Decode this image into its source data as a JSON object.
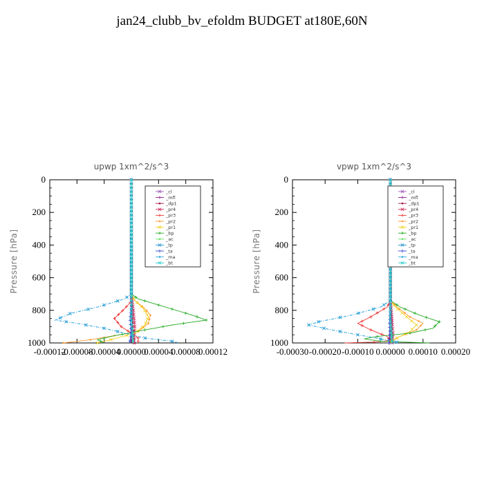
{
  "title": "jan24_clubb_bv_efoldm  BUDGET at180E,60N",
  "legend": [
    {
      "name": "_cl",
      "color": "#9b59b6"
    },
    {
      "name": "_mfl",
      "color": "#8e1a8e"
    },
    {
      "name": "_dp1",
      "color": "#a0124a"
    },
    {
      "name": "_pr4",
      "color": "#cc2255"
    },
    {
      "name": "_pr3",
      "color": "#ee3333"
    },
    {
      "name": "_pr2",
      "color": "#ff9933"
    },
    {
      "name": "_pr1",
      "color": "#f0d020"
    },
    {
      "name": "_bp",
      "color": "#22aa22"
    },
    {
      "name": "_ac",
      "color": "#66dd66"
    },
    {
      "name": "_tp",
      "color": "#1f8fcf"
    },
    {
      "name": "_ta",
      "color": "#3344cc"
    },
    {
      "name": "_ma",
      "color": "#33aadd"
    },
    {
      "name": "_bt",
      "color": "#22cccc"
    }
  ],
  "chart_data": [
    {
      "type": "line",
      "title": "upwp   1xm^2/s^3",
      "ylabel": "Pressure [hPa]",
      "xlim": [
        -0.00012,
        0.00012
      ],
      "ylim": [
        1000,
        0
      ],
      "y_inverted": true,
      "xticks": [
        "-0.00012",
        "-0.00008",
        "-0.00004",
        "0.00000",
        "0.00004",
        "0.00008",
        "0.00012"
      ],
      "xtick_values": [
        -0.00012,
        -8e-05,
        -4e-05,
        0,
        4e-05,
        8e-05,
        0.00012
      ],
      "yticks": [
        "0",
        "200",
        "400",
        "600",
        "800",
        "1000"
      ],
      "ytick_values": [
        0,
        200,
        400,
        600,
        800,
        1000
      ],
      "series": [
        {
          "name": "_cl",
          "points": [
            [
              0,
              0
            ],
            [
              0,
              700
            ],
            [
              1e-06,
              850
            ],
            [
              0,
              950
            ],
            [
              2e-06,
              1000
            ]
          ]
        },
        {
          "name": "_mfl",
          "points": [
            [
              0,
              0
            ],
            [
              0,
              700
            ],
            [
              1e-06,
              850
            ],
            [
              0,
              950
            ],
            [
              -1e-06,
              1000
            ]
          ]
        },
        {
          "name": "_dp1",
          "points": [
            [
              0,
              0
            ],
            [
              0,
              700
            ],
            [
              0,
              800
            ],
            [
              2e-06,
              900
            ],
            [
              5e-06,
              1000
            ]
          ]
        },
        {
          "name": "_pr4",
          "points": [
            [
              0,
              0
            ],
            [
              0,
              700
            ],
            [
              3e-06,
              800
            ],
            [
              5e-06,
              900
            ],
            [
              4e-06,
              1000
            ]
          ]
        },
        {
          "name": "_pr3",
          "points": [
            [
              0,
              0
            ],
            [
              0,
              700
            ],
            [
              1e-06,
              740
            ],
            [
              -1e-05,
              790
            ],
            [
              -2.5e-05,
              850
            ],
            [
              -1.5e-05,
              900
            ],
            [
              0,
              940
            ],
            [
              1e-05,
              970
            ],
            [
              1e-05,
              1000
            ]
          ]
        },
        {
          "name": "_pr2",
          "points": [
            [
              0,
              0
            ],
            [
              0,
              700
            ],
            [
              5e-06,
              740
            ],
            [
              2e-05,
              790
            ],
            [
              2.8e-05,
              830
            ],
            [
              2.5e-05,
              880
            ],
            [
              1e-05,
              930
            ],
            [
              -6e-05,
              980
            ],
            [
              -0.0001,
              1000
            ]
          ]
        },
        {
          "name": "_pr1",
          "points": [
            [
              0,
              0
            ],
            [
              0,
              700
            ],
            [
              5e-06,
              740
            ],
            [
              1.8e-05,
              790
            ],
            [
              2.5e-05,
              840
            ],
            [
              2e-05,
              890
            ],
            [
              5e-06,
              940
            ],
            [
              -3e-05,
              980
            ],
            [
              -5e-05,
              1000
            ]
          ]
        },
        {
          "name": "_bp",
          "points": [
            [
              0,
              0
            ],
            [
              0,
              700
            ],
            [
              1e-05,
              730
            ],
            [
              5e-05,
              780
            ],
            [
              9e-05,
              830
            ],
            [
              0.00011,
              860
            ],
            [
              6e-05,
              890
            ],
            [
              2e-05,
              920
            ],
            [
              -3e-05,
              960
            ],
            [
              -5e-05,
              980
            ],
            [
              -4e-05,
              1000
            ]
          ]
        },
        {
          "name": "_ac",
          "points": [
            [
              0,
              0
            ],
            [
              0,
              850
            ],
            [
              2e-06,
              950
            ],
            [
              2e-06,
              1000
            ]
          ]
        },
        {
          "name": "_tp",
          "points": [
            [
              0,
              0
            ],
            [
              0,
              700
            ],
            [
              -1e-05,
              730
            ],
            [
              -5e-05,
              780
            ],
            [
              -9e-05,
              820
            ],
            [
              -0.000112,
              860
            ],
            [
              -8e-05,
              880
            ],
            [
              -4e-05,
              910
            ],
            [
              -1e-05,
              940
            ],
            [
              2e-05,
              970
            ],
            [
              6e-05,
              990
            ],
            [
              7e-05,
              1000
            ]
          ]
        },
        {
          "name": "_ta",
          "points": [
            [
              0,
              0
            ],
            [
              0,
              780
            ],
            [
              -2e-06,
              850
            ],
            [
              -1e-06,
              900
            ],
            [
              0,
              950
            ],
            [
              -3e-06,
              1000
            ]
          ]
        },
        {
          "name": "_ma",
          "points": [
            [
              0,
              0
            ],
            [
              0,
              700
            ],
            [
              -1e-05,
              730
            ],
            [
              -5e-05,
              780
            ],
            [
              -9e-05,
              820
            ],
            [
              -0.000112,
              860
            ],
            [
              -8e-05,
              880
            ],
            [
              -4e-05,
              910
            ],
            [
              -1e-05,
              940
            ],
            [
              2e-05,
              970
            ],
            [
              6e-05,
              990
            ],
            [
              7e-05,
              1000
            ]
          ]
        },
        {
          "name": "_bt",
          "points": [
            [
              0,
              0
            ],
            [
              0,
              850
            ],
            [
              2e-06,
              950
            ],
            [
              3e-06,
              1000
            ]
          ]
        }
      ]
    },
    {
      "type": "line",
      "title": "vpwp   1xm^2/s^3",
      "ylabel": "Pressure [hPa]",
      "xlim": [
        -0.0003,
        0.0002
      ],
      "ylim": [
        1000,
        0
      ],
      "y_inverted": true,
      "xticks": [
        "-0.00030",
        "-0.00020",
        "-0.00010",
        "0.00000",
        "0.00010",
        "0.00020"
      ],
      "xtick_values": [
        -0.0003,
        -0.0002,
        -0.0001,
        0,
        0.0001,
        0.0002
      ],
      "yticks": [
        "0",
        "200",
        "400",
        "600",
        "800",
        "1000"
      ],
      "ytick_values": [
        0,
        200,
        400,
        600,
        800,
        1000
      ],
      "series": [
        {
          "name": "_cl",
          "points": [
            [
              0,
              0
            ],
            [
              0,
              750
            ],
            [
              3e-06,
              880
            ],
            [
              0,
              950
            ],
            [
              5e-06,
              1000
            ]
          ]
        },
        {
          "name": "_mfl",
          "points": [
            [
              0,
              0
            ],
            [
              0,
              750
            ],
            [
              3e-06,
              880
            ],
            [
              0,
              950
            ],
            [
              -3e-06,
              1000
            ]
          ]
        },
        {
          "name": "_dp1",
          "points": [
            [
              0,
              0
            ],
            [
              0,
              750
            ],
            [
              0,
              850
            ],
            [
              5e-06,
              950
            ],
            [
              1e-05,
              1000
            ]
          ]
        },
        {
          "name": "_pr4",
          "points": [
            [
              0,
              0
            ],
            [
              0,
              750
            ],
            [
              5e-06,
              850
            ],
            [
              8e-06,
              950
            ],
            [
              5e-06,
              1000
            ]
          ]
        },
        {
          "name": "_pr3",
          "points": [
            [
              0,
              0
            ],
            [
              0,
              740
            ],
            [
              -1e-05,
              780
            ],
            [
              -6e-05,
              840
            ],
            [
              -0.0001,
              880
            ],
            [
              -6e-05,
              920
            ],
            [
              -1e-05,
              960
            ],
            [
              0,
              985
            ],
            [
              -5e-05,
              995
            ],
            [
              -0.00014,
              1000
            ]
          ]
        },
        {
          "name": "_pr2",
          "points": [
            [
              0,
              0
            ],
            [
              0,
              740
            ],
            [
              2e-05,
              780
            ],
            [
              6e-05,
              840
            ],
            [
              0.0001,
              880
            ],
            [
              8e-05,
              920
            ],
            [
              3e-05,
              960
            ],
            [
              0,
              990
            ],
            [
              5e-06,
              1000
            ]
          ]
        },
        {
          "name": "_pr1",
          "points": [
            [
              0,
              0
            ],
            [
              0,
              740
            ],
            [
              1.5e-05,
              780
            ],
            [
              5e-05,
              840
            ],
            [
              8e-05,
              890
            ],
            [
              6e-05,
              930
            ],
            [
              2e-05,
              970
            ],
            [
              0,
              1000
            ]
          ]
        },
        {
          "name": "_bp",
          "points": [
            [
              0,
              0
            ],
            [
              0,
              740
            ],
            [
              3e-05,
              780
            ],
            [
              9e-05,
              830
            ],
            [
              0.00015,
              870
            ],
            [
              0.00013,
              910
            ],
            [
              6e-05,
              940
            ],
            [
              -4e-05,
              960
            ],
            [
              -8e-05,
              975
            ],
            [
              -3e-05,
              990
            ],
            [
              0.00012,
              1000
            ]
          ]
        },
        {
          "name": "_ac",
          "points": [
            [
              0,
              0
            ],
            [
              0,
              850
            ],
            [
              3e-06,
              950
            ],
            [
              4e-06,
              1000
            ]
          ]
        },
        {
          "name": "_tp",
          "points": [
            [
              0,
              0
            ],
            [
              0,
              740
            ],
            [
              -3e-05,
              780
            ],
            [
              -0.00012,
              830
            ],
            [
              -0.00022,
              870
            ],
            [
              -0.00025,
              890
            ],
            [
              -0.00018,
              920
            ],
            [
              -0.0001,
              950
            ],
            [
              -3e-05,
              975
            ],
            [
              2e-05,
              995
            ],
            [
              1e-05,
              1000
            ]
          ]
        },
        {
          "name": "_ta",
          "points": [
            [
              0,
              0
            ],
            [
              0,
              800
            ],
            [
              -3e-06,
              880
            ],
            [
              -2e-06,
              940
            ],
            [
              -5e-06,
              1000
            ]
          ]
        },
        {
          "name": "_ma",
          "points": [
            [
              0,
              0
            ],
            [
              0,
              740
            ],
            [
              -3e-05,
              780
            ],
            [
              -0.00012,
              830
            ],
            [
              -0.00022,
              870
            ],
            [
              -0.00025,
              890
            ],
            [
              -0.00018,
              920
            ],
            [
              -0.0001,
              950
            ],
            [
              -3e-05,
              975
            ],
            [
              2e-05,
              995
            ],
            [
              1e-05,
              1000
            ]
          ]
        },
        {
          "name": "_bt",
          "points": [
            [
              0,
              0
            ],
            [
              0,
              850
            ],
            [
              4e-06,
              950
            ],
            [
              6e-06,
              1000
            ]
          ]
        }
      ]
    }
  ]
}
